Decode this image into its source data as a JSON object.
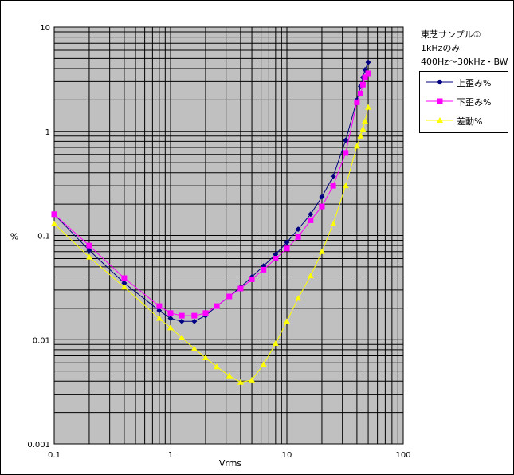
{
  "chart_data": {
    "type": "line",
    "title_lines": [
      "東芝サンプル①",
      "1kHzのみ",
      "400Hz～30kHz・BW"
    ],
    "xlabel": "Vrms",
    "ylabel": "%",
    "xscale": "log",
    "yscale": "log",
    "xlim": [
      0.1,
      100
    ],
    "ylim": [
      0.001,
      10
    ],
    "x_ticks": [
      "0.1",
      "1",
      "10",
      "100"
    ],
    "y_ticks": [
      "10",
      "1",
      "0.1",
      "0.01",
      "0.001"
    ],
    "grid": true,
    "legend_position": "right",
    "series": [
      {
        "name": "上歪み%",
        "color": "#000080",
        "marker": "diamond",
        "x": [
          0.1,
          0.2,
          0.4,
          0.8,
          1.0,
          1.25,
          1.6,
          2.0,
          2.5,
          3.2,
          4.0,
          5.0,
          6.3,
          8.0,
          10,
          12.5,
          16,
          20,
          25,
          32,
          40,
          43,
          45,
          47,
          50
        ],
        "y": [
          0.16,
          0.072,
          0.035,
          0.019,
          0.016,
          0.015,
          0.015,
          0.017,
          0.021,
          0.026,
          0.032,
          0.04,
          0.051,
          0.066,
          0.086,
          0.115,
          0.16,
          0.235,
          0.37,
          0.82,
          2.0,
          2.7,
          3.3,
          3.9,
          4.6
        ]
      },
      {
        "name": "下歪み%",
        "color": "#ff00ff",
        "marker": "square",
        "x": [
          0.1,
          0.2,
          0.4,
          0.8,
          1.0,
          1.25,
          1.6,
          2.0,
          2.5,
          3.2,
          4.0,
          5.0,
          6.3,
          8.0,
          10,
          12.5,
          16,
          20,
          25,
          32,
          40,
          43,
          45,
          47,
          50
        ],
        "y": [
          0.16,
          0.08,
          0.039,
          0.021,
          0.018,
          0.017,
          0.017,
          0.018,
          0.021,
          0.026,
          0.031,
          0.038,
          0.047,
          0.06,
          0.075,
          0.097,
          0.14,
          0.19,
          0.3,
          0.62,
          1.9,
          2.3,
          2.8,
          3.3,
          3.6
        ]
      },
      {
        "name": "差動%",
        "color": "#ffff00",
        "marker": "triangle",
        "x": [
          0.1,
          0.2,
          0.4,
          0.8,
          1.0,
          1.25,
          1.6,
          2.0,
          2.5,
          3.2,
          4.0,
          5.0,
          6.3,
          8.0,
          10,
          12.5,
          16,
          20,
          25,
          32,
          40,
          43,
          45,
          47,
          50
        ],
        "y": [
          0.13,
          0.062,
          0.032,
          0.016,
          0.013,
          0.0105,
          0.0082,
          0.0067,
          0.0055,
          0.0045,
          0.0039,
          0.0041,
          0.0058,
          0.0092,
          0.015,
          0.025,
          0.041,
          0.07,
          0.13,
          0.3,
          0.72,
          0.9,
          1.05,
          1.25,
          1.7
        ]
      }
    ]
  }
}
